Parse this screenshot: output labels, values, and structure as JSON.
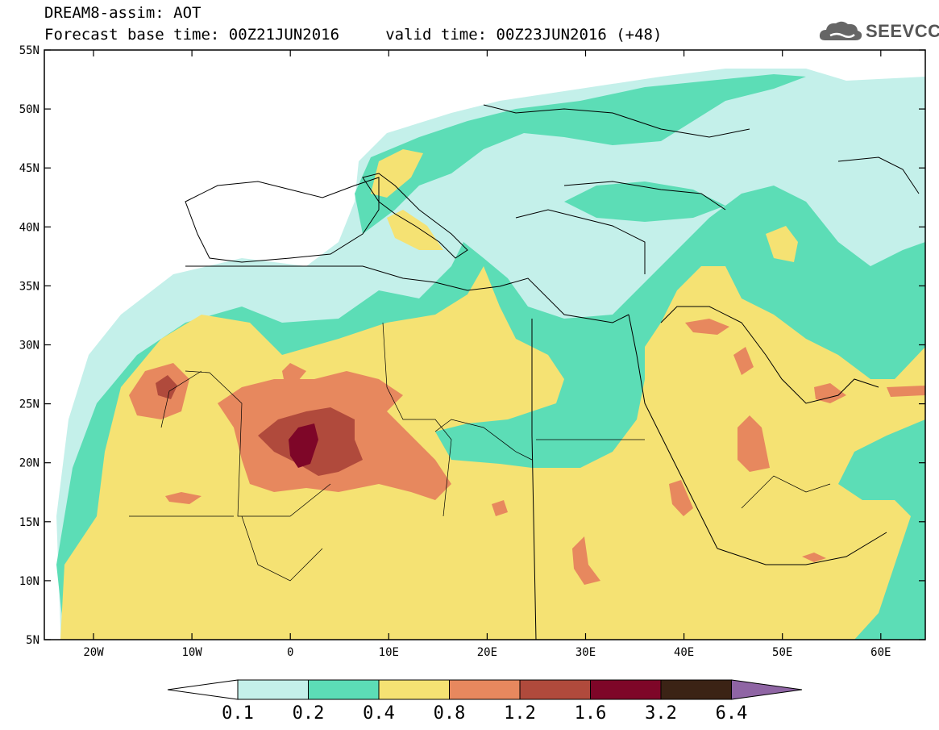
{
  "title": {
    "line1": "DREAM8-assim: AOT",
    "line2": "Forecast base time: 00Z21JUN2016     valid time: 00Z23JUN2016 (+48)"
  },
  "logo": {
    "text": "SEEVCCC",
    "icon": "cloud-icon"
  },
  "map": {
    "lat_labels": [
      "55N",
      "50N",
      "45N",
      "40N",
      "35N",
      "30N",
      "25N",
      "20N",
      "15N",
      "10N",
      "5N"
    ],
    "lon_labels": [
      "20W",
      "10W",
      "0",
      "10E",
      "20E",
      "30E",
      "40E",
      "50E",
      "60E"
    ]
  },
  "colorbar": {
    "labels": [
      "0.1",
      "0.2",
      "0.4",
      "0.8",
      "1.2",
      "1.6",
      "3.2",
      "6.4"
    ],
    "colors": [
      "#ffffff",
      "#c4f0ea",
      "#5cddb6",
      "#f5e273",
      "#e7885e",
      "#b04a3c",
      "#7e0628",
      "#3b2315",
      "#8f65a4"
    ]
  },
  "colors": {
    "c01": "#c4f0ea",
    "c02": "#5cddb6",
    "c04": "#f5e273",
    "c08": "#e7885e",
    "c12": "#b04a3c",
    "c16": "#7e0628"
  }
}
